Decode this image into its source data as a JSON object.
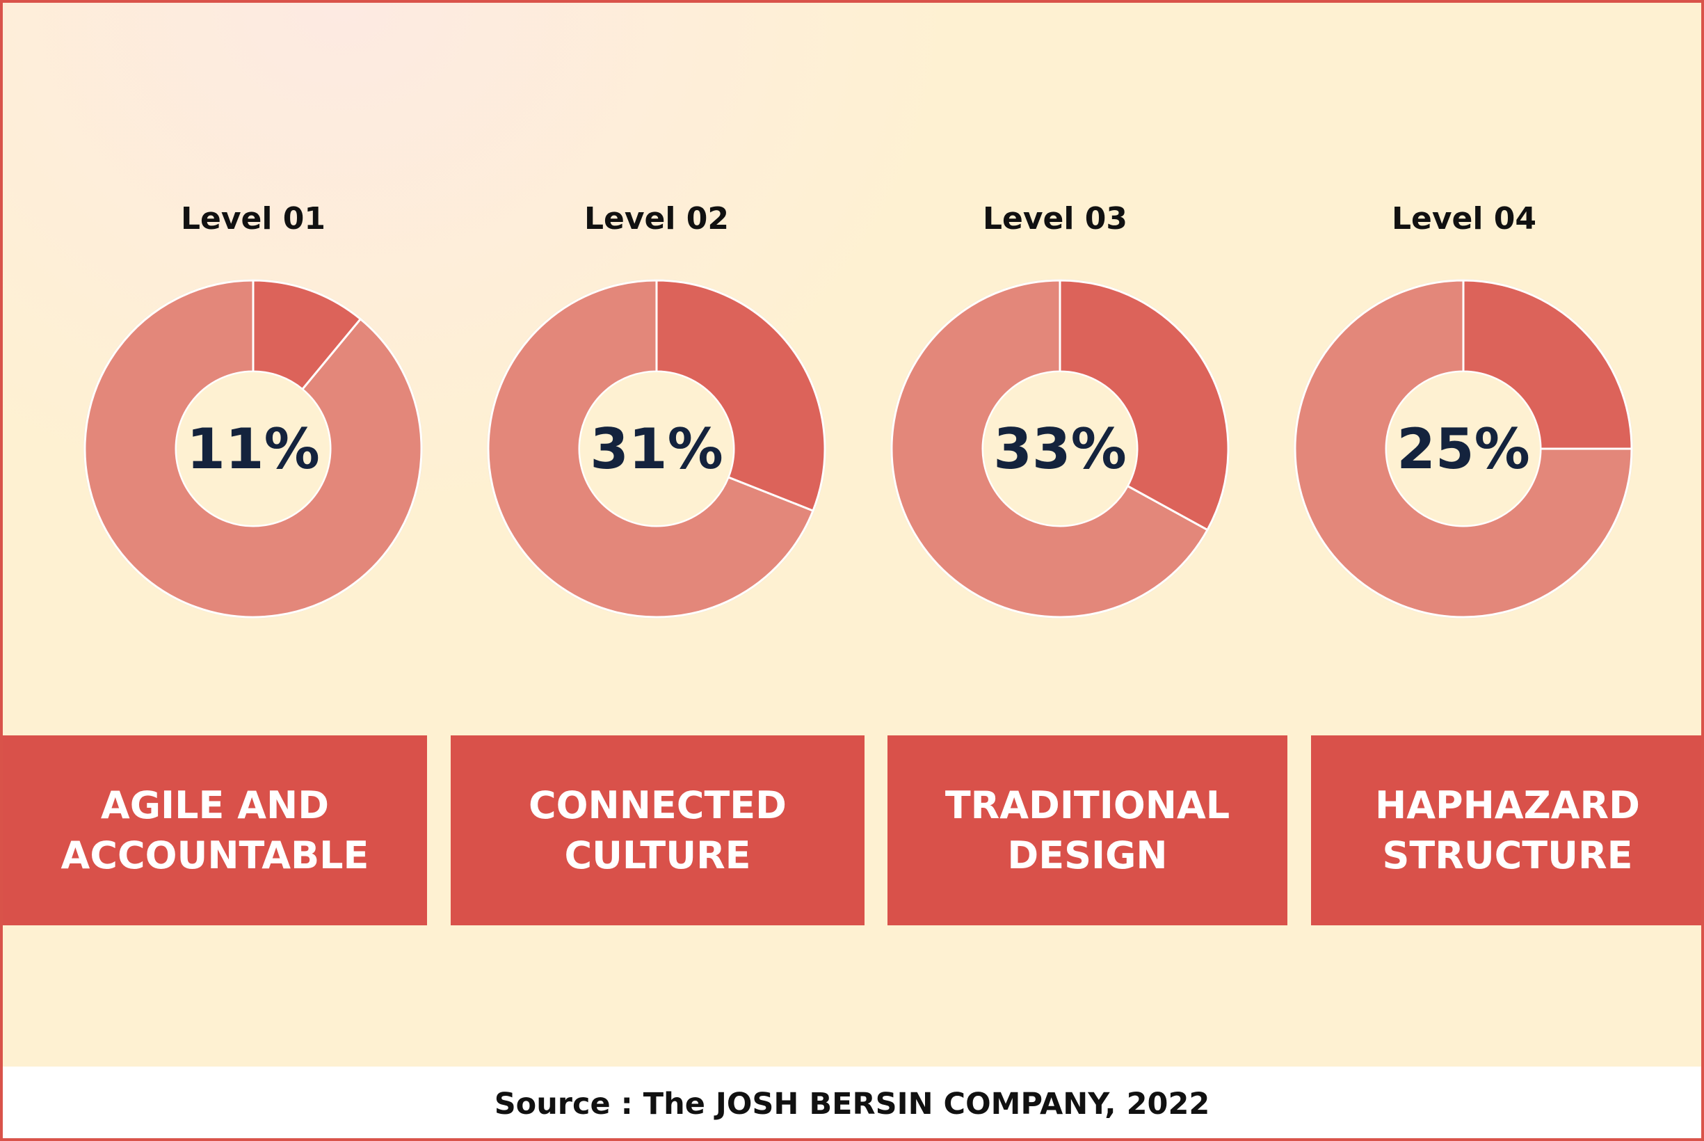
{
  "colors": {
    "highlight": "#dc635a",
    "remainder": "#e3877a",
    "ring_border": "#ffffff",
    "label_box": "#d9514a",
    "frame_border": "#d9534a",
    "background": "#fef1d2",
    "percent_text": "#14233d"
  },
  "chart_data": {
    "type": "pie",
    "variant": "donut",
    "items": [
      {
        "level": "Level 01",
        "value": 11,
        "value_label": "11%",
        "category": "AGILE AND\nACCOUNTABLE"
      },
      {
        "level": "Level 02",
        "value": 31,
        "value_label": "31%",
        "category": "CONNECTED\nCULTURE"
      },
      {
        "level": "Level 03",
        "value": 33,
        "value_label": "33%",
        "category": "TRADITIONAL\nDESIGN"
      },
      {
        "level": "Level 04",
        "value": 25,
        "value_label": "25%",
        "category": "HAPHAZARD\nSTRUCTURE"
      }
    ]
  },
  "source": "Source : The JOSH BERSIN COMPANY, 2022"
}
